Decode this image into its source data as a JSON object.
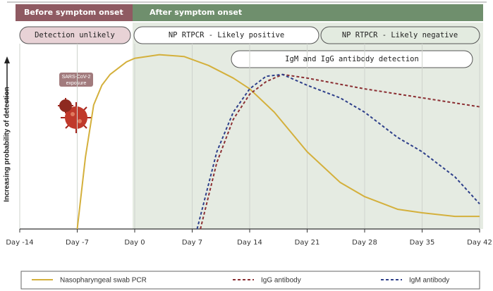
{
  "chart_data": {
    "type": "line",
    "y_label": "Increasing probability of detection",
    "phases": [
      "Before symptom onset",
      "After symptom onset"
    ],
    "windows": [
      "Detection unlikely",
      "NP RTPCR - Likely positive",
      "NP RTPCR - Likely negative",
      "IgM and IgG antibody detection"
    ],
    "annotation": [
      "SARS-CoV-2",
      "exposure"
    ],
    "xlim": [
      -14,
      42
    ],
    "ylim": [
      0,
      100
    ],
    "xticks": [
      {
        "value": -14,
        "label": "Day -14"
      },
      {
        "value": -7,
        "label": "Day -7"
      },
      {
        "value": 0,
        "label": "Day 0"
      },
      {
        "value": 7,
        "label": "Day 7"
      },
      {
        "value": 14,
        "label": "Day 14"
      },
      {
        "value": 21,
        "label": "Day 21"
      },
      {
        "value": 28,
        "label": "Day 28"
      },
      {
        "value": 35,
        "label": "Day 35"
      },
      {
        "value": 42,
        "label": "Day 42"
      }
    ],
    "grid": true,
    "series": [
      {
        "name": "Nasopharyngeal swab PCR",
        "color": "#d4b03c",
        "dash": false,
        "x": [
          -7,
          -6,
          -5,
          -4,
          -3,
          -1,
          0,
          3,
          6,
          9,
          12,
          14,
          17,
          21,
          25,
          28,
          32,
          35,
          39,
          42
        ],
        "values": [
          0,
          40,
          69,
          80,
          86,
          93,
          95,
          97,
          96,
          91,
          84,
          78,
          65,
          43,
          26,
          18,
          11,
          9,
          7,
          7
        ]
      },
      {
        "name": "IgG antibody",
        "color": "#8b2f33",
        "dash": true,
        "x": [
          8,
          10,
          12,
          14,
          16,
          18,
          21,
          28,
          35,
          42
        ],
        "values": [
          0,
          37,
          61,
          75,
          82,
          86,
          84,
          78,
          73,
          68
        ]
      },
      {
        "name": "IgM antibody",
        "color": "#2e3f8a",
        "dash": true,
        "x": [
          7.6,
          10,
          12,
          14,
          16,
          18,
          21,
          25,
          28,
          32,
          35,
          39,
          42
        ],
        "values": [
          0,
          43,
          65,
          78,
          85,
          86,
          80,
          73,
          65,
          51,
          43,
          29,
          14
        ]
      }
    ]
  }
}
